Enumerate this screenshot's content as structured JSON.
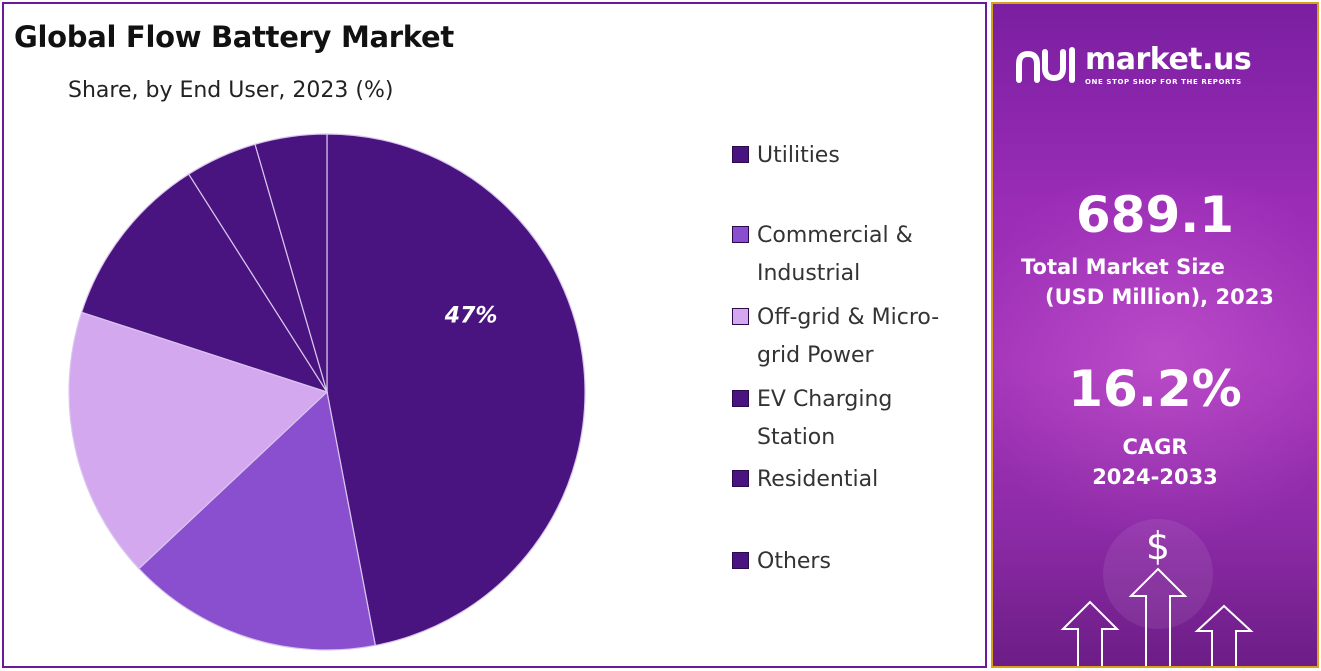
{
  "header": {
    "title": "Global Flow Battery Market",
    "subtitle": "Share, by End User, 2023 (%)"
  },
  "chart_data": {
    "type": "pie",
    "title": "Global Flow Battery Market",
    "subtitle": "Share, by End User, 2023 (%)",
    "slices": [
      {
        "name": "Utilities",
        "value": 47,
        "color": "#4a1480",
        "label": "47%"
      },
      {
        "name": "Commercial & Industrial",
        "value": 16,
        "color": "#8a4fcf",
        "label": ""
      },
      {
        "name": "Off-grid & Micro-grid Power",
        "value": 17,
        "color": "#d4a8ee",
        "label": ""
      },
      {
        "name": "EV Charging Station",
        "value": 11,
        "color": "#4a1480",
        "label": ""
      },
      {
        "name": "Residential",
        "value": 4.5,
        "color": "#4a1480",
        "label": ""
      },
      {
        "name": "Others",
        "value": 4.5,
        "color": "#4a1480",
        "label": ""
      }
    ],
    "legend_position": "right"
  },
  "legend": {
    "items": [
      {
        "lines": [
          "Utilities"
        ],
        "color": "#4a1480"
      },
      {
        "lines": [
          "Commercial &",
          "Industrial"
        ],
        "color": "#8a4fcf"
      },
      {
        "lines": [
          "Off-grid & Micro-",
          "grid Power"
        ],
        "color": "#d4a8ee"
      },
      {
        "lines": [
          "EV Charging",
          "Station"
        ],
        "color": "#4a1480"
      },
      {
        "lines": [
          "Residential"
        ],
        "color": "#4a1480"
      },
      {
        "lines": [
          "Others"
        ],
        "color": "#4a1480"
      }
    ]
  },
  "side": {
    "brand": "market.us",
    "tagline": "ONE STOP SHOP FOR THE REPORTS",
    "market_size": "689.1",
    "market_size_label_1": "Total Market Size",
    "market_size_label_2": "(USD Million), 2023",
    "cagr": "16.2%",
    "cagr_label_1": "CAGR",
    "cagr_label_2": "2024-2033",
    "currency_symbol": "$"
  }
}
